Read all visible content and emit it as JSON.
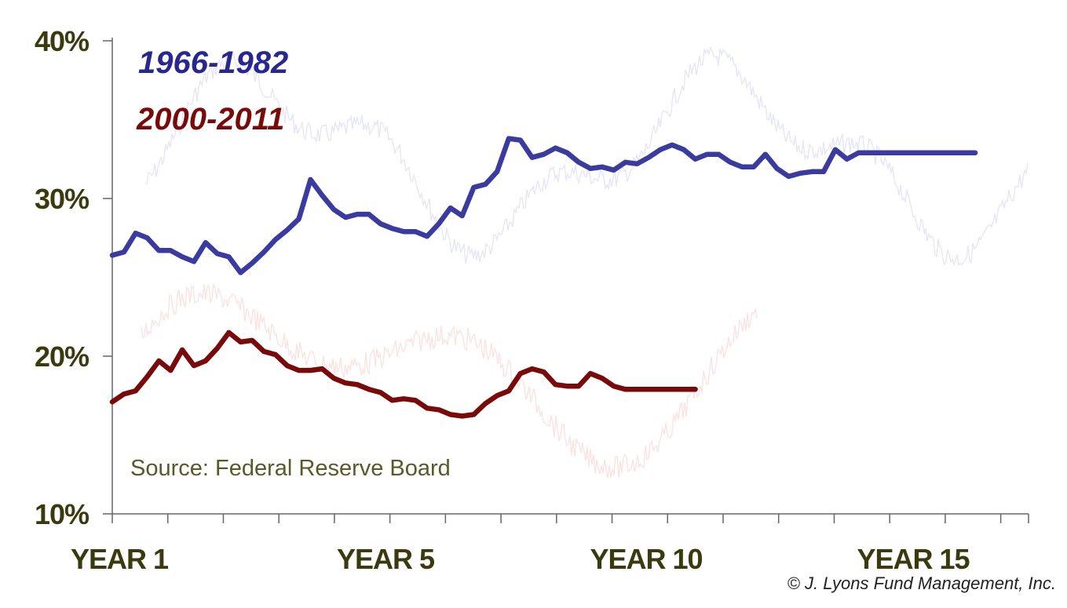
{
  "chart_data": {
    "type": "line",
    "ylim": [
      10,
      40
    ],
    "y_ticks": [
      "10%",
      "20%",
      "30%",
      "40%"
    ],
    "y_tick_values": [
      10,
      20,
      30,
      40
    ],
    "x_range": [
      1,
      17.5
    ],
    "x_tick_labels": [
      {
        "label": "YEAR 1",
        "x": 1
      },
      {
        "label": "YEAR 5",
        "x": 5
      },
      {
        "label": "YEAR 10",
        "x": 10
      },
      {
        "label": "YEAR 15",
        "x": 15
      }
    ],
    "x_minor_ticks": [
      1,
      2,
      3,
      4,
      5,
      6,
      7,
      8,
      9,
      10,
      11,
      12,
      13,
      14,
      15,
      16,
      17,
      17.5
    ],
    "annotation": "Source: Federal Reserve Board",
    "copyright": "© J. Lyons Fund Management, Inc.",
    "colors": {
      "s1966": "#3b3b9f",
      "s2000": "#7a0a0a",
      "faint_blue": "#e6e6f7",
      "faint_red": "#fbe3e3",
      "axis": "#666666",
      "ticks": "#3a3a0e"
    },
    "series": [
      {
        "name": "1966-1982",
        "x": [
          1,
          1.21,
          1.42,
          1.63,
          1.84,
          2.05,
          2.26,
          2.47,
          2.68,
          2.89,
          3.1,
          3.31,
          3.52,
          3.73,
          3.94,
          4.15,
          4.36,
          4.57,
          4.78,
          4.99,
          5.2,
          5.41,
          5.62,
          5.83,
          6.04,
          6.25,
          6.46,
          6.67,
          6.88,
          7.09,
          7.3,
          7.51,
          7.72,
          7.93,
          8.14,
          8.35,
          8.56,
          8.77,
          8.98,
          9.19,
          9.4,
          9.61,
          9.82,
          10.03,
          10.24,
          10.45,
          10.66,
          10.87,
          11.08,
          11.29,
          11.5,
          11.71,
          11.92,
          12.13,
          12.34,
          12.55,
          12.76,
          12.97,
          13.18,
          13.39,
          13.6,
          13.81,
          14.02,
          14.23,
          14.44,
          14.65,
          14.86,
          15.07,
          15.28,
          15.49,
          15.7,
          15.91,
          16.12,
          16.33,
          16.54
        ],
        "values": [
          26.4,
          26.6,
          27.8,
          27.5,
          26.7,
          26.7,
          26.3,
          26.0,
          27.2,
          26.5,
          26.3,
          25.3,
          25.9,
          26.6,
          27.4,
          28.0,
          28.7,
          31.2,
          30.2,
          29.3,
          28.8,
          29.0,
          29.0,
          28.4,
          28.1,
          27.9,
          27.9,
          27.6,
          28.4,
          29.4,
          28.9,
          30.7,
          30.9,
          31.7,
          33.8,
          33.7,
          32.6,
          32.8,
          33.2,
          32.9,
          32.3,
          31.9,
          32.0,
          31.8,
          32.3,
          32.2,
          32.6,
          33.1,
          33.4,
          33.1,
          32.5,
          32.8,
          32.8,
          32.3,
          32.0,
          32.0,
          32.8,
          31.9,
          31.4,
          31.6,
          31.7,
          31.7,
          33.1,
          32.5,
          32.9,
          32.9,
          32.9,
          32.9,
          32.9,
          32.9,
          32.9,
          32.9,
          32.9,
          32.9,
          32.9
        ]
      },
      {
        "name": "2000-2011",
        "x": [
          1,
          1.21,
          1.42,
          1.63,
          1.84,
          2.05,
          2.26,
          2.47,
          2.68,
          2.89,
          3.1,
          3.31,
          3.52,
          3.73,
          3.94,
          4.15,
          4.36,
          4.57,
          4.78,
          4.99,
          5.2,
          5.41,
          5.62,
          5.83,
          6.04,
          6.25,
          6.46,
          6.67,
          6.88,
          7.09,
          7.3,
          7.51,
          7.72,
          7.93,
          8.14,
          8.35,
          8.56,
          8.77,
          8.98,
          9.19,
          9.4,
          9.61,
          9.82,
          10.03,
          10.24,
          10.45,
          10.66,
          10.87,
          11.08,
          11.29,
          11.5
        ],
        "values": [
          17.1,
          17.6,
          17.8,
          18.7,
          19.7,
          19.1,
          20.4,
          19.4,
          19.7,
          20.5,
          21.5,
          20.9,
          21.0,
          20.3,
          20.1,
          19.4,
          19.1,
          19.1,
          19.2,
          18.6,
          18.3,
          18.2,
          17.9,
          17.7,
          17.2,
          17.3,
          17.2,
          16.7,
          16.6,
          16.3,
          16.2,
          16.3,
          17.0,
          17.5,
          17.8,
          18.9,
          19.2,
          19.0,
          18.2,
          18.1,
          18.1,
          18.9,
          18.6,
          18.1,
          17.9,
          17.9,
          17.9,
          17.9,
          17.9,
          17.9,
          17.9
        ]
      }
    ]
  },
  "legend": [
    {
      "label": "1966-1982",
      "color": "#27278f"
    },
    {
      "label": "2000-2011",
      "color": "#7a0a0a"
    }
  ]
}
